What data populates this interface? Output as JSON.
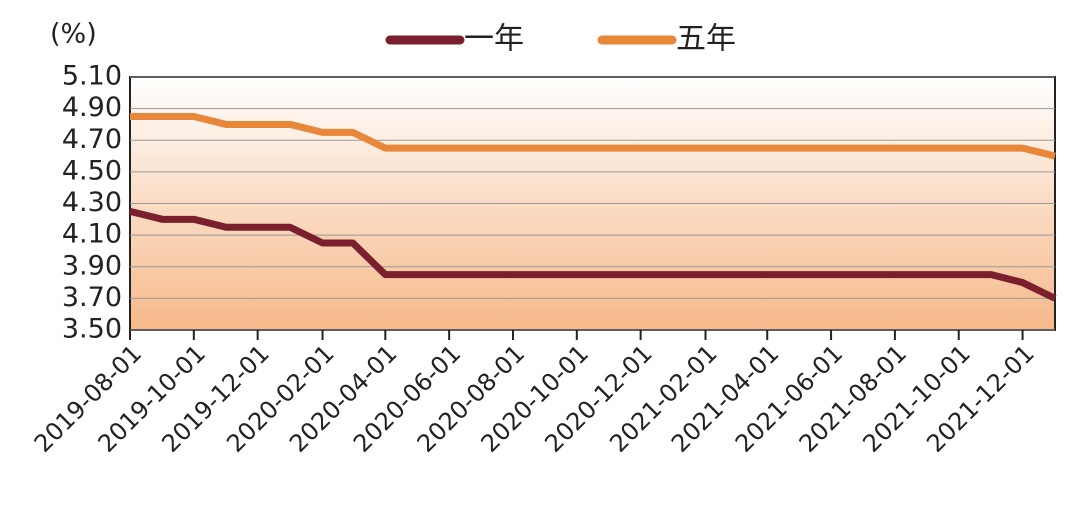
{
  "chart_data": {
    "type": "line",
    "y_label": "(%)",
    "x": [
      "2019-08-01",
      "2019-09-01",
      "2019-10-01",
      "2019-11-01",
      "2019-12-01",
      "2020-01-01",
      "2020-02-01",
      "2020-03-01",
      "2020-04-01",
      "2020-05-01",
      "2020-06-01",
      "2020-07-01",
      "2020-08-01",
      "2020-09-01",
      "2020-10-01",
      "2020-11-01",
      "2020-12-01",
      "2021-01-01",
      "2021-02-01",
      "2021-03-01",
      "2021-04-01",
      "2021-05-01",
      "2021-06-01",
      "2021-07-01",
      "2021-08-01",
      "2021-09-01",
      "2021-10-01",
      "2021-11-01",
      "2021-12-01",
      "2022-01-01"
    ],
    "series": [
      {
        "name": "一年",
        "color": "#7a1f2e",
        "values": [
          4.25,
          4.2,
          4.2,
          4.15,
          4.15,
          4.15,
          4.05,
          4.05,
          3.85,
          3.85,
          3.85,
          3.85,
          3.85,
          3.85,
          3.85,
          3.85,
          3.85,
          3.85,
          3.85,
          3.85,
          3.85,
          3.85,
          3.85,
          3.85,
          3.85,
          3.85,
          3.85,
          3.85,
          3.8,
          3.7
        ]
      },
      {
        "name": "五年",
        "color": "#e8873a",
        "values": [
          4.85,
          4.85,
          4.85,
          4.8,
          4.8,
          4.8,
          4.75,
          4.75,
          4.65,
          4.65,
          4.65,
          4.65,
          4.65,
          4.65,
          4.65,
          4.65,
          4.65,
          4.65,
          4.65,
          4.65,
          4.65,
          4.65,
          4.65,
          4.65,
          4.65,
          4.65,
          4.65,
          4.65,
          4.65,
          4.6
        ]
      }
    ],
    "xlim": [
      "2019-08-01",
      "2022-01-01"
    ],
    "xticks": [
      "2019-08-01",
      "2019-10-01",
      "2019-12-01",
      "2020-02-01",
      "2020-04-01",
      "2020-06-01",
      "2020-08-01",
      "2020-10-01",
      "2020-12-01",
      "2021-02-01",
      "2021-04-01",
      "2021-06-01",
      "2021-08-01",
      "2021-10-01",
      "2021-12-01"
    ],
    "ylim": [
      3.5,
      5.1
    ],
    "yticks": [
      {
        "value": 3.5,
        "label": "3.50"
      },
      {
        "value": 3.7,
        "label": "3.70"
      },
      {
        "value": 3.9,
        "label": "3.90"
      },
      {
        "value": 4.1,
        "label": "4.10"
      },
      {
        "value": 4.3,
        "label": "4.30"
      },
      {
        "value": 4.5,
        "label": "4.50"
      },
      {
        "value": 4.7,
        "label": "4.70"
      },
      {
        "value": 4.9,
        "label": "4.90"
      },
      {
        "value": 5.1,
        "label": "5.10"
      }
    ],
    "grid": true
  }
}
